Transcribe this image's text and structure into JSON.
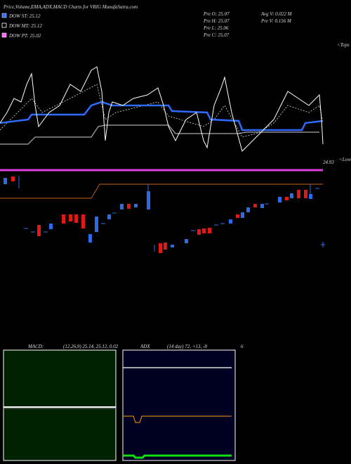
{
  "header": {
    "title": "Price,Volume,EMA,ADX,MACD Charts for VRIG MunafaSutra.com"
  },
  "legend": [
    {
      "label": "DOW ST: 25.12",
      "color": "#2f6bff"
    },
    {
      "label": "DOW MT: 25.12",
      "color": "#ffffff"
    },
    {
      "label": "DOW PT: 25.02",
      "color": "#ff66ff"
    }
  ],
  "stats": {
    "prev": [
      "Pre  O: 25.07",
      "Pre  H: 25.07",
      "Pre  L: 25.06",
      "Pre  C: 25.07"
    ],
    "volume": [
      "Avg V: 0.022  M",
      "Pre  V: 0.156  M"
    ]
  },
  "labels": {
    "tops": "<Tops",
    "last": "24.93",
    "lows": "<Lows"
  },
  "macd": {
    "name": "MACD:",
    "params": "(12,26,9) 25.14, 25.12, 0.02"
  },
  "adx": {
    "name": "ADX",
    "params": "(14  day) 72, +13, -8",
    "extra": "6"
  }
}
